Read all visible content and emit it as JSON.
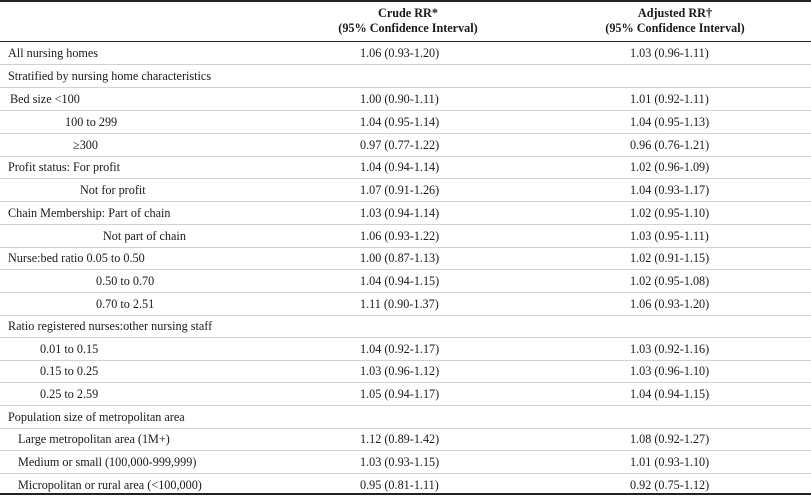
{
  "header": {
    "crude_title": "Crude RR*",
    "crude_sub": "(95% Confidence Interval)",
    "adj_title": "Adjusted RR†",
    "adj_sub": "(95% Confidence Interval)"
  },
  "rows": [
    {
      "label": "All nursing homes",
      "crude": "1.06 (0.93-1.20)",
      "adjusted": "1.03 (0.96-1.11)"
    },
    {
      "label": "Stratified by nursing home characteristics",
      "crude": "",
      "adjusted": ""
    },
    {
      "label": "Bed size  <100",
      "crude": "1.00 (0.90-1.11)",
      "adjusted": "1.01 (0.92-1.11)"
    },
    {
      "label": "100 to 299",
      "crude": "1.04 (0.95-1.14)",
      "adjusted": "1.04 (0.95-1.13)"
    },
    {
      "label": "≥300",
      "crude": "0.97 (0.77-1.22)",
      "adjusted": "0.96 (0.76-1.21)"
    },
    {
      "label": "Profit status: For profit",
      "crude": "1.04 (0.94-1.14)",
      "adjusted": "1.02 (0.96-1.09)"
    },
    {
      "label": "Not for profit",
      "crude": "1.07 (0.91-1.26)",
      "adjusted": "1.04 (0.93-1.17)"
    },
    {
      "label": "Chain Membership: Part of chain",
      "crude": "1.03 (0.94-1.14)",
      "adjusted": "1.02 (0.95-1.10)"
    },
    {
      "label": "Not part of chain",
      "crude": "1.06 (0.93-1.22)",
      "adjusted": "1.03 (0.95-1.11)"
    },
    {
      "label": "Nurse:bed ratio 0.05 to 0.50",
      "crude": "1.00 (0.87-1.13)",
      "adjusted": "1.02 (0.91-1.15)"
    },
    {
      "label": "0.50 to 0.70",
      "crude": "1.04 (0.94-1.15)",
      "adjusted": "1.02 (0.95-1.08)"
    },
    {
      "label": "0.70 to 2.51",
      "crude": "1.11 (0.90-1.37)",
      "adjusted": "1.06 (0.93-1.20)"
    },
    {
      "label": "Ratio registered nurses:other nursing staff",
      "crude": "",
      "adjusted": ""
    },
    {
      "label": "0.01 to 0.15",
      "crude": "1.04 (0.92-1.17)",
      "adjusted": "1.03 (0.92-1.16)"
    },
    {
      "label": "0.15 to 0.25",
      "crude": "1.03 (0.96-1.12)",
      "adjusted": "1.03 (0.96-1.10)"
    },
    {
      "label": "0.25 to 2.59",
      "crude": "1.05 (0.94-1.17)",
      "adjusted": "1.04 (0.94-1.15)"
    },
    {
      "label": "Population size of metropolitan area",
      "crude": "",
      "adjusted": ""
    },
    {
      "label": "Large metropolitan area (1M+)",
      "crude": "1.12 (0.89-1.42)",
      "adjusted": "1.08 (0.92-1.27)"
    },
    {
      "label": "Medium or small (100,000-999,999)",
      "crude": "1.03 (0.93-1.15)",
      "adjusted": "1.01 (0.93-1.10)"
    },
    {
      "label": "Micropolitan or rural area (<100,000)",
      "crude": "0.95 (0.81-1.11)",
      "adjusted": "0.92 (0.75-1.12)"
    }
  ]
}
